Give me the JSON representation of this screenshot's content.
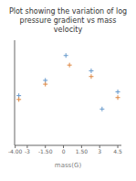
{
  "chart_data": {
    "type": "scatter",
    "title": "Plot showing the variation of log pressure gradient vs mass velocity",
    "x_label": "mass(G)",
    "xlim": [
      -4.05,
      4.8
    ],
    "ylim": [
      -0.3,
      5.2
    ],
    "xticks": [
      {
        "value": -4.0,
        "label": "-4.00"
      },
      -3,
      {
        "value": -1.5,
        "label": "-1.50"
      },
      0,
      {
        "value": 1.5,
        "label": "1.50"
      },
      3,
      4.5
    ],
    "tick_labels": "x",
    "marker": "plus",
    "series": [
      {
        "color": "#6699cc",
        "x": [
          -3.7,
          -1.5,
          0.2,
          2.3,
          4.5,
          3.2
        ],
        "values": [
          2.3,
          3.1,
          4.4,
          3.6,
          2.5,
          1.6
        ]
      },
      {
        "color": "#dd8844",
        "x": [
          -3.7,
          -1.5,
          0.5,
          2.3,
          4.5
        ],
        "values": [
          2.1,
          2.9,
          3.9,
          3.3,
          2.2
        ]
      }
    ]
  }
}
